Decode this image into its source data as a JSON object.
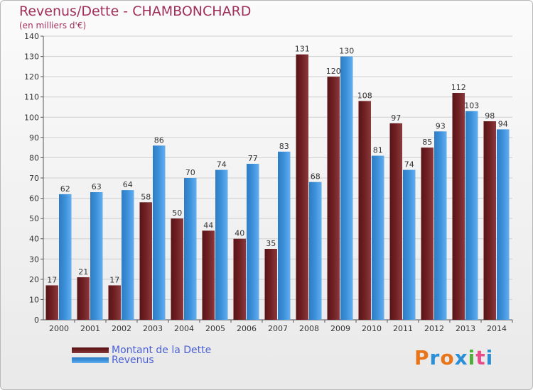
{
  "title": "Revenus/Dette - CHAMBONCHARD",
  "subtitle": "(en milliers d'€)",
  "logo": {
    "text": "Proxiti",
    "colors": [
      "#e8751a",
      "#2b8fd6",
      "#e8751a",
      "#2b8fd6",
      "#4fae3a",
      "#e84b8a",
      "#2b8fd6"
    ]
  },
  "colors": {
    "dette": "#6e1f22",
    "revenus": "#3a8fd8"
  },
  "chart_data": {
    "type": "bar",
    "title": "Revenus/Dette - CHAMBONCHARD",
    "ylabel": "(en milliers d'€)",
    "ylim": [
      0,
      140
    ],
    "yticks": [
      0,
      10,
      20,
      30,
      40,
      50,
      60,
      70,
      80,
      90,
      100,
      110,
      120,
      130,
      140
    ],
    "grid": true,
    "legend_position": "bottom-left",
    "categories": [
      "2000",
      "2001",
      "2002",
      "2003",
      "2004",
      "2005",
      "2006",
      "2007",
      "2008",
      "2009",
      "2010",
      "2011",
      "2012",
      "2013",
      "2014"
    ],
    "series": [
      {
        "name": "Montant de la Dette",
        "values": [
          17,
          21,
          17,
          58,
          50,
          44,
          40,
          35,
          131,
          120,
          108,
          97,
          85,
          112,
          98
        ]
      },
      {
        "name": "Revenus",
        "values": [
          62,
          63,
          64,
          86,
          70,
          74,
          77,
          83,
          68,
          130,
          81,
          74,
          93,
          103,
          94
        ]
      }
    ]
  }
}
